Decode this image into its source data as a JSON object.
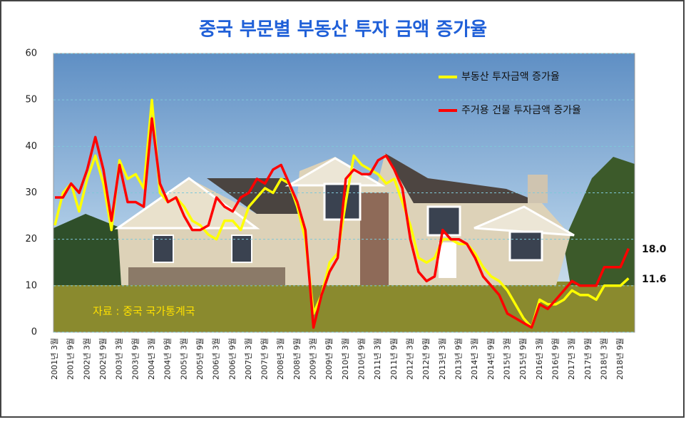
{
  "chart_data": {
    "type": "line",
    "title": "중국 부문별 부동산 투자 금액 증가율",
    "categories": [
      "2001년 3월",
      null,
      "2001년 9월",
      null,
      "2002년 3월",
      null,
      "2002년 9월",
      null,
      "2003년 3월",
      null,
      "2003년 9월",
      null,
      "2004년 3월",
      null,
      "2004년 9월",
      null,
      "2005년 3월",
      null,
      "2005년 9월",
      null,
      "2006년 3월",
      null,
      "2006년 9월",
      null,
      "2007년 3월",
      null,
      "2007년 9월",
      null,
      "2008년 3월",
      null,
      "2008년 9월",
      null,
      "2009년 3월",
      null,
      "2009년 9월",
      null,
      "2010년 3월",
      null,
      "2010년 9월",
      null,
      "2011년 3월",
      null,
      "2011년 9월",
      null,
      "2012년 3월",
      null,
      "2012년 9월",
      null,
      "2013년 3월",
      null,
      "2013년 9월",
      null,
      "2014년 3월",
      null,
      "2014년 9월",
      null,
      "2015년 3월",
      null,
      "2015년 9월",
      null,
      "2016년 3월",
      null,
      "2016년 9월",
      null,
      "2017년 3월",
      null,
      "2017년 9월",
      null,
      "2018년 3월",
      null,
      "2018년 9월",
      null
    ],
    "series": [
      {
        "name": "부동산 투자금액 증가율",
        "color": "#ffff00",
        "values": [
          23,
          30,
          32,
          26,
          33,
          38,
          32,
          22,
          37,
          33,
          34,
          31,
          50,
          30,
          28,
          29,
          27,
          24,
          23,
          21,
          20,
          24,
          24,
          22,
          27,
          29,
          31,
          30,
          33,
          32,
          27,
          20,
          4,
          8,
          15,
          17,
          28,
          38,
          36,
          35,
          34,
          32,
          33,
          28,
          23,
          16,
          15,
          16,
          20,
          20,
          19,
          19,
          17,
          14,
          12,
          11,
          9,
          6,
          3,
          1,
          7,
          6,
          6,
          7,
          9,
          8,
          8,
          7,
          10,
          10,
          10,
          11.6
        ]
      },
      {
        "name": "주거용 건물 투자금액 증가율",
        "color": "#ff0000",
        "values": [
          29,
          29,
          32,
          30,
          35,
          42,
          35,
          24,
          36,
          28,
          28,
          27,
          46,
          32,
          28,
          29,
          25,
          22,
          22,
          23,
          29,
          27,
          26,
          29,
          30,
          33,
          32,
          35,
          36,
          32,
          28,
          22,
          1,
          8,
          13,
          16,
          33,
          35,
          34,
          34,
          37,
          38,
          35,
          31,
          20,
          13,
          11,
          12,
          22,
          20,
          20,
          19,
          16,
          12,
          10,
          8,
          4,
          3,
          2,
          1,
          6,
          5,
          7,
          9,
          11,
          10,
          10,
          10,
          14,
          14,
          14,
          18
        ]
      }
    ],
    "ylim": [
      0,
      60
    ],
    "yticks": [
      0,
      10,
      20,
      30,
      40,
      50,
      60
    ],
    "grid": true,
    "legend": "top-right",
    "annotations": [
      "18.0",
      "11.6",
      "자료 : 중국 국가통계국"
    ]
  }
}
